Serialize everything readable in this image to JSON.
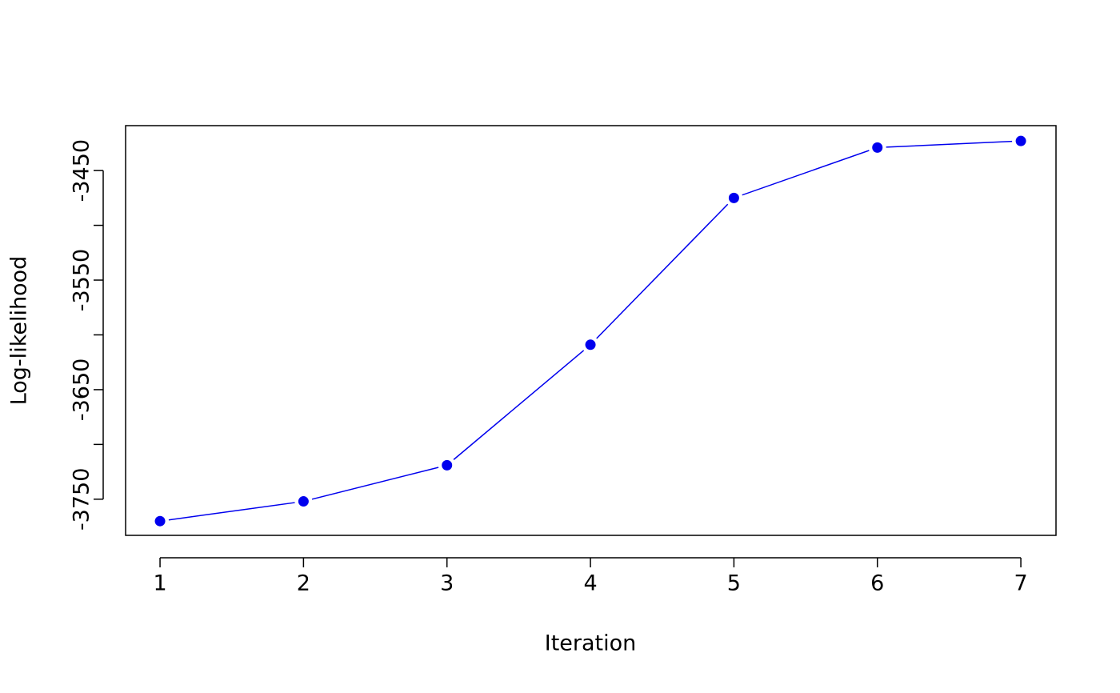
{
  "chart_data": {
    "type": "line",
    "x_label": "Iteration",
    "y_label": "Log-likelihood",
    "x": [
      1,
      2,
      3,
      4,
      5,
      6,
      7
    ],
    "series": [
      {
        "color": "#0000ee",
        "values": [
          -3770,
          -3752,
          -3719,
          -3609,
          -3475,
          -3429,
          -3423
        ]
      }
    ],
    "xlim": [
      0.76,
      7.245
    ],
    "ylim": [
      -3783,
      -3409
    ],
    "xticks": [
      1,
      2,
      3,
      4,
      5,
      6,
      7
    ],
    "yticks": [
      -3750,
      {
        "value": -3700,
        "label": null
      },
      -3650,
      {
        "value": -3600,
        "label": null
      },
      -3550,
      {
        "value": -3500,
        "label": null
      },
      -3450
    ]
  }
}
